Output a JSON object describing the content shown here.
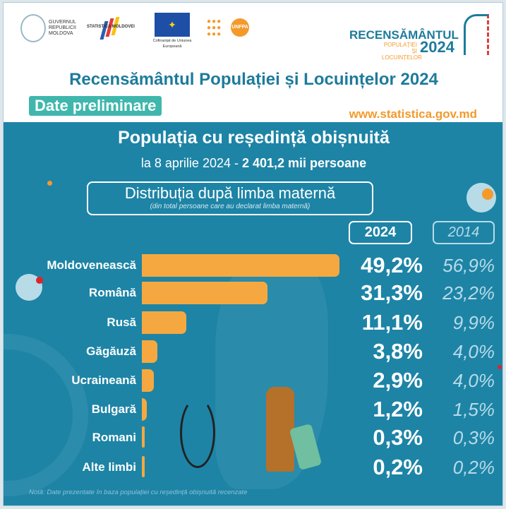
{
  "header": {
    "logos": {
      "gov": "GUVERNUL REPUBLICII MOLDOVA",
      "stat": "STATISTICA MOLDOVEI",
      "eu": "Cofinanțat de Uniunea Europeană",
      "unfpa": "UNFPA",
      "census_line1": "RECENSĂMÂNTUL",
      "census_line2": "POPULAȚIEI ȘI",
      "census_line3": "LOCUINȚELOR",
      "census_year": "2024"
    },
    "title": "Recensământul Populației și Locuințelor 2024",
    "badge": "Date preliminare",
    "website": "www.statistica.gov.md"
  },
  "colors": {
    "background": "#1d84a6",
    "bar": "#f5a83f",
    "title": "#1d7b9c",
    "badge": "#3fb7ad",
    "accent": "#f39a2b"
  },
  "chart_data": {
    "type": "bar",
    "orientation": "horizontal",
    "title": "Populația cu reședință obișnuită",
    "subtitle_prefix": "la 8 aprilie 2024 - ",
    "subtitle_bold": "2 401,2 mii persoane",
    "heading": "Distribuția după limba maternă",
    "heading_note": "(din total persoane care au declarat limba maternă)",
    "categories": [
      "Moldovenească",
      "Română",
      "Rusă",
      "Găgăuză",
      "Ucraineană",
      "Bulgară",
      "Romani",
      "Alte limbi"
    ],
    "series": [
      {
        "name": "2024",
        "values": [
          49.2,
          31.3,
          11.1,
          3.8,
          2.9,
          1.2,
          0.3,
          0.2
        ],
        "labels": [
          "49,2%",
          "31,3%",
          "11,1%",
          "3,8%",
          "2,9%",
          "1,2%",
          "0,3%",
          "0,2%"
        ]
      },
      {
        "name": "2014",
        "values": [
          56.9,
          23.2,
          9.9,
          4.0,
          4.0,
          1.5,
          0.3,
          0.2
        ],
        "labels": [
          "56,9%",
          "23,2%",
          "9,9%",
          "4,0%",
          "4,0%",
          "1,5%",
          "0,3%",
          "0,2%"
        ]
      }
    ],
    "bars_show": "2024",
    "unit": "%"
  },
  "note": "Notă: Date prezentate în baza populației cu reședință obișnuită recenzate"
}
